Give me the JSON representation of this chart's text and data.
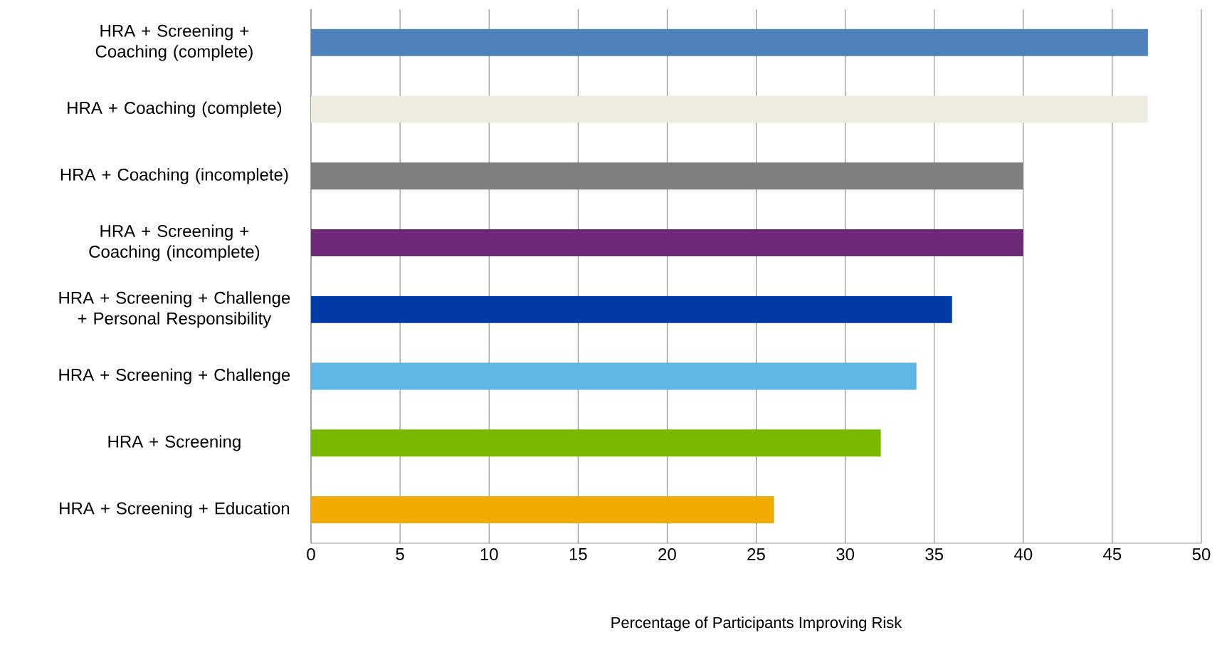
{
  "chart_data": {
    "type": "bar",
    "orientation": "horizontal",
    "categories": [
      "HRA + Screening + Coaching (complete)",
      "HRA + Coaching (complete)",
      "HRA + Coaching (incomplete)",
      "HRA + Screening + Coaching (incomplete)",
      "HRA + Screening + Challenge + Personal Responsibility",
      "HRA + Screening + Challenge",
      "HRA + Screening",
      "HRA + Screening + Education"
    ],
    "values": [
      47,
      47,
      40,
      40,
      36,
      34,
      32,
      26
    ],
    "colors": [
      "#4f81bd",
      "#eeece1",
      "#7f7f7f",
      "#6e2878",
      "#003aa6",
      "#5fb6e4",
      "#77b800",
      "#f0aa00"
    ],
    "xlim": [
      0,
      50
    ],
    "xticks": [
      0,
      5,
      10,
      15,
      20,
      25,
      30,
      35,
      40,
      45,
      50
    ],
    "xlabel": "Percentage of Participants Improving Risk",
    "grid": "x"
  }
}
